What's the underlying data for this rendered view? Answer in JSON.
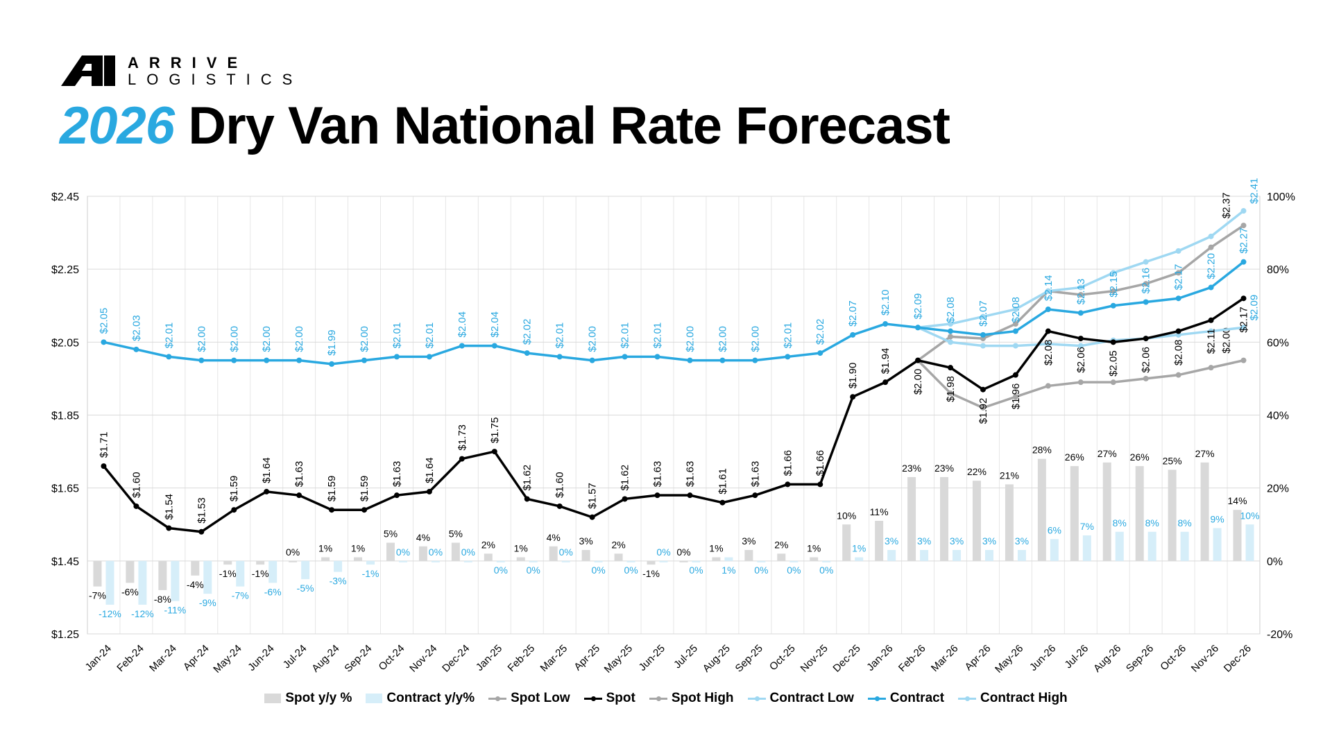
{
  "brand": {
    "line1": "ARRIVE",
    "line2": "LOGISTICS"
  },
  "title": {
    "year": "2026",
    "rest": "Dry Van National Rate Forecast"
  },
  "colors": {
    "spot": "#000000",
    "contract": "#29a8e0",
    "spot_range": "#a6a6a6",
    "contract_range": "#9fd8f2",
    "spot_bar": "#d9d9d9",
    "contract_bar": "#d6eef9"
  },
  "chart_data": {
    "type": "line+bar",
    "categories": [
      "Jan-24",
      "Feb-24",
      "Mar-24",
      "Apr-24",
      "May-24",
      "Jun-24",
      "Jul-24",
      "Aug-24",
      "Sep-24",
      "Oct-24",
      "Nov-24",
      "Dec-24",
      "Jan-25",
      "Feb-25",
      "Mar-25",
      "Apr-25",
      "May-25",
      "Jun-25",
      "Jul-25",
      "Aug-25",
      "Sep-25",
      "Oct-25",
      "Nov-25",
      "Dec-25",
      "Jan-26",
      "Feb-26",
      "Mar-26",
      "Apr-26",
      "May-26",
      "Jun-26",
      "Jul-26",
      "Aug-26",
      "Sep-26",
      "Oct-26",
      "Nov-26",
      "Dec-26"
    ],
    "left_axis": {
      "min": 1.25,
      "max": 2.45,
      "ticks": [
        "$1.25",
        "$1.45",
        "$1.65",
        "$1.85",
        "$2.05",
        "$2.25",
        "$2.45"
      ]
    },
    "right_axis": {
      "min": -20,
      "max": 100,
      "ticks": [
        "-20%",
        "0%",
        "20%",
        "40%",
        "60%",
        "80%",
        "100%"
      ]
    },
    "grid": true,
    "legend_position": "bottom",
    "bars": [
      {
        "name": "Spot y/y %",
        "values": [
          -7,
          -6,
          -8,
          -4,
          -1,
          -1,
          0,
          1,
          1,
          5,
          4,
          5,
          2,
          1,
          4,
          3,
          2,
          -1,
          0,
          1,
          3,
          2,
          1,
          10,
          11,
          23,
          23,
          22,
          21,
          28,
          26,
          27,
          26,
          25,
          27,
          14
        ]
      },
      {
        "name": "Contract y/y%",
        "values": [
          -12,
          -12,
          -11,
          -9,
          -7,
          -6,
          -5,
          -3,
          -1,
          0,
          0,
          0,
          0,
          0,
          0,
          0,
          0,
          0,
          0,
          1,
          0,
          0,
          0,
          1,
          3,
          3,
          3,
          3,
          3,
          6,
          7,
          8,
          8,
          8,
          9,
          10
        ]
      }
    ],
    "lines": [
      {
        "name": "Spot Low",
        "start": 25,
        "values": [
          2.0,
          1.91,
          1.87,
          1.9,
          1.93,
          1.94,
          1.94,
          1.95,
          1.96,
          1.98,
          2.0
        ],
        "end_label": "$2.00"
      },
      {
        "name": "Spot",
        "start": 0,
        "values": [
          1.71,
          1.6,
          1.54,
          1.53,
          1.59,
          1.64,
          1.63,
          1.59,
          1.59,
          1.63,
          1.64,
          1.73,
          1.75,
          1.62,
          1.6,
          1.57,
          1.62,
          1.63,
          1.63,
          1.61,
          1.63,
          1.66,
          1.66,
          1.9,
          1.94,
          2.0,
          1.98,
          1.92,
          1.96,
          2.08,
          2.06,
          2.05,
          2.06,
          2.08,
          2.11,
          2.17
        ]
      },
      {
        "name": "Spot High",
        "start": 25,
        "values": [
          2.0,
          2.065,
          2.06,
          2.1,
          2.19,
          2.18,
          2.19,
          2.21,
          2.24,
          2.31,
          2.37
        ],
        "end_label": "$2.37"
      },
      {
        "name": "Contract Low",
        "start": 25,
        "values": [
          2.09,
          2.05,
          2.04,
          2.04,
          2.045,
          2.04,
          2.055,
          2.06,
          2.07,
          2.08,
          2.09
        ],
        "end_label": "$2.09"
      },
      {
        "name": "Contract",
        "start": 0,
        "values": [
          2.05,
          2.03,
          2.01,
          2.0,
          2.0,
          2.0,
          2.0,
          1.99,
          2.0,
          2.01,
          2.01,
          2.04,
          2.04,
          2.02,
          2.01,
          2.0,
          2.01,
          2.01,
          2.0,
          2.0,
          2.0,
          2.01,
          2.02,
          2.07,
          2.1,
          2.09,
          2.08,
          2.07,
          2.08,
          2.14,
          2.13,
          2.15,
          2.16,
          2.17,
          2.2,
          2.27
        ]
      },
      {
        "name": "Contract High",
        "start": 25,
        "values": [
          2.09,
          2.1,
          2.12,
          2.14,
          2.19,
          2.2,
          2.24,
          2.27,
          2.3,
          2.34,
          2.41
        ],
        "end_label": "$2.41"
      }
    ]
  }
}
